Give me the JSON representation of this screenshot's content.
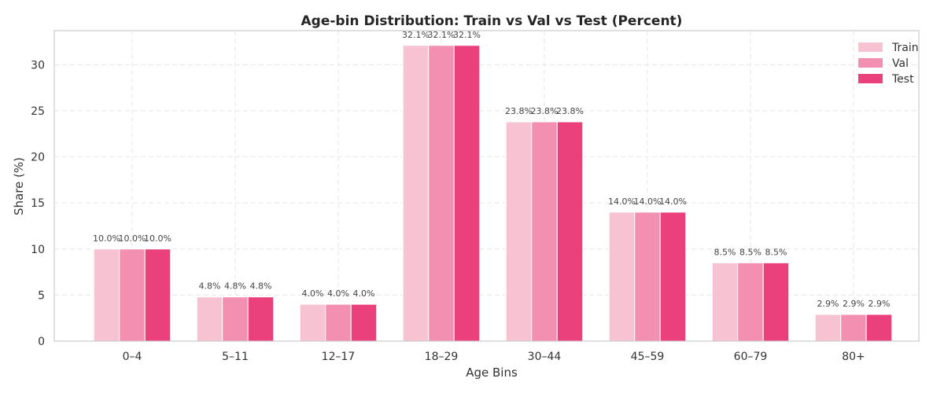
{
  "chart_data": {
    "type": "bar",
    "title": "Age-bin Distribution: Train vs Val vs Test (Percent)",
    "xlabel": "Age Bins",
    "ylabel": "Share (%)",
    "categories": [
      "0–4",
      "5–11",
      "12–17",
      "18–29",
      "30–44",
      "45–59",
      "60–79",
      "80+"
    ],
    "series": [
      {
        "name": "Train",
        "color": "#f7c3d3",
        "values": [
          10.0,
          4.8,
          4.0,
          32.1,
          23.8,
          14.0,
          8.5,
          2.9
        ]
      },
      {
        "name": "Val",
        "color": "#f38fb0",
        "values": [
          10.0,
          4.8,
          4.0,
          32.1,
          23.8,
          14.0,
          8.5,
          2.9
        ]
      },
      {
        "name": "Test",
        "color": "#ea407b",
        "values": [
          10.0,
          4.8,
          4.0,
          32.1,
          23.8,
          14.0,
          8.5,
          2.9
        ]
      }
    ],
    "ylim": [
      0,
      33.7
    ],
    "yticks": [
      0,
      5,
      10,
      15,
      20,
      25,
      30
    ],
    "grid": true,
    "legend_position": "top-right",
    "value_label_format": "{v}%"
  }
}
